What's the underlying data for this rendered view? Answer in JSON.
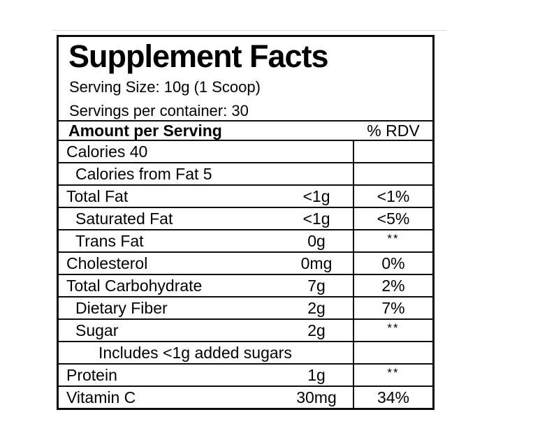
{
  "page": {
    "background_color": "#ffffff",
    "divider_line_color": "#d9d9d9"
  },
  "label": {
    "title": "Supplement Facts",
    "serving_size": "Serving Size: 10g (1 Scoop)",
    "servings_per_container": "Servings per container: 30",
    "colors": {
      "border": "#0d0d0d",
      "text": "#000000",
      "background": "#ffffff"
    },
    "header": {
      "amount_label": "Amount per Serving",
      "rdv_label": "% RDV"
    },
    "rows": [
      {
        "name": "Calories 40",
        "indent": 0,
        "amount": "",
        "rdv": ""
      },
      {
        "name": "Calories from Fat 5",
        "indent": 1,
        "amount": "",
        "rdv": ""
      },
      {
        "name": "Total Fat",
        "indent": 0,
        "amount": "<1g",
        "rdv": "<1%"
      },
      {
        "name": "Saturated Fat",
        "indent": 1,
        "amount": "<1g",
        "rdv": "<5%"
      },
      {
        "name": "Trans Fat",
        "indent": 1,
        "amount": "0g",
        "rdv": "**"
      },
      {
        "name": "Cholesterol",
        "indent": 0,
        "amount": "0mg",
        "rdv": "0%"
      },
      {
        "name": "Total Carbohydrate",
        "indent": 0,
        "amount": "7g",
        "rdv": "2%"
      },
      {
        "name": "Dietary Fiber",
        "indent": 1,
        "amount": "2g",
        "rdv": "7%"
      },
      {
        "name": "Sugar",
        "indent": 1,
        "amount": "2g",
        "rdv": "**"
      },
      {
        "name": "Includes <1g added sugars",
        "indent": 2,
        "amount": "",
        "rdv": ""
      },
      {
        "name": "Protein",
        "indent": 0,
        "amount": "1g",
        "rdv": "**"
      },
      {
        "name": "Vitamin C",
        "indent": 0,
        "amount": "30mg",
        "rdv": "34%"
      }
    ]
  }
}
